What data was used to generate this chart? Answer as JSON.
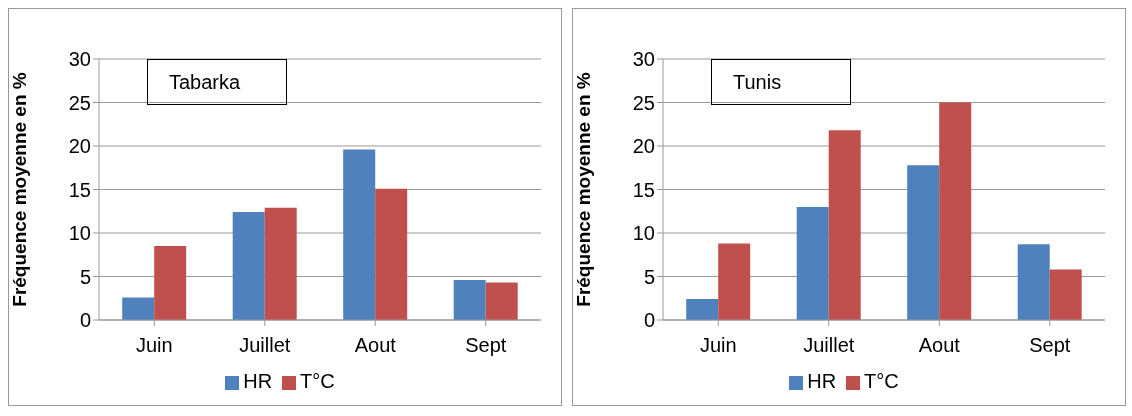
{
  "chart_data": [
    {
      "type": "bar",
      "title": "Tabarka",
      "ylabel": "Fréquence moyenne en %",
      "categories": [
        "Juin",
        "Juillet",
        "Aout",
        "Sept"
      ],
      "series": [
        {
          "name": "HR",
          "color": "#4f81bd",
          "values": [
            2.6,
            12.4,
            19.6,
            4.6
          ]
        },
        {
          "name": "T°C",
          "color": "#c0504d",
          "values": [
            8.5,
            12.9,
            15.1,
            4.3
          ]
        }
      ],
      "ylim": [
        0,
        30
      ],
      "yticks": [
        0,
        5,
        10,
        15,
        20,
        25,
        30
      ],
      "grid": "y",
      "legend": "bottom"
    },
    {
      "type": "bar",
      "title": "Tunis",
      "ylabel": "Fréquence moyenne en %",
      "categories": [
        "Juin",
        "Juillet",
        "Aout",
        "Sept"
      ],
      "series": [
        {
          "name": "HR",
          "color": "#4f81bd",
          "values": [
            2.4,
            13.0,
            17.8,
            8.7
          ]
        },
        {
          "name": "T°C",
          "color": "#c0504d",
          "values": [
            8.8,
            21.8,
            25.0,
            5.8
          ]
        }
      ],
      "ylim": [
        0,
        30
      ],
      "yticks": [
        0,
        5,
        10,
        15,
        20,
        25,
        30
      ],
      "grid": "y",
      "legend": "bottom"
    }
  ]
}
